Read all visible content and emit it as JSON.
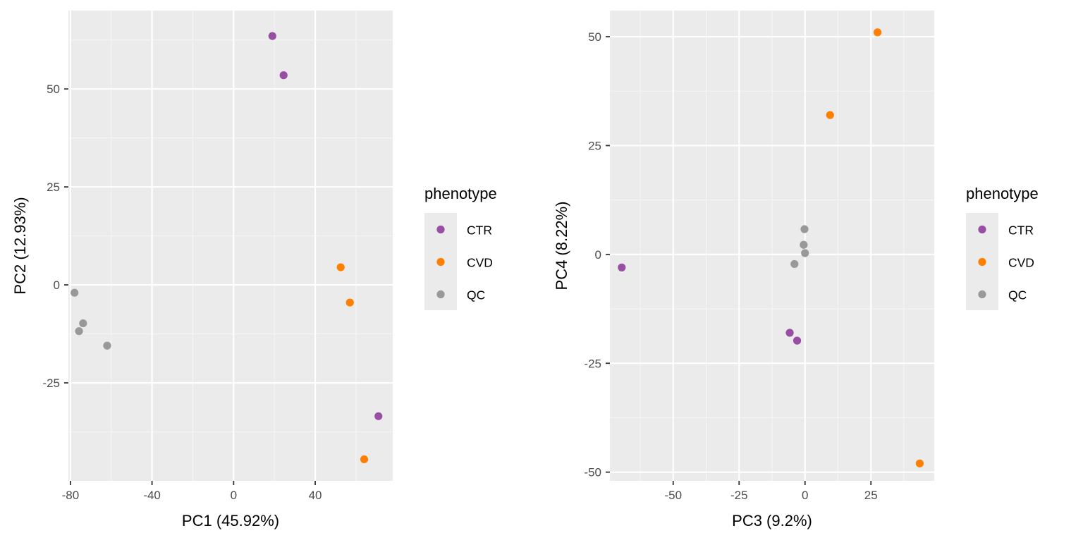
{
  "colors": {
    "panel_background": "#EBEBEB",
    "grid_major": "#FFFFFF",
    "grid_minor": "#F5F5F5",
    "tick_text": "#4D4D4D",
    "tick_mark": "#333333",
    "CTR": "#984EA3",
    "CVD": "#FF7F00",
    "QC": "#999999"
  },
  "chart_data": [
    {
      "type": "scatter",
      "xlabel": "PC1 (45.92%)",
      "ylabel": "PC2 (12.93%)",
      "xlim": [
        -81,
        78
      ],
      "ylim": [
        -50,
        70
      ],
      "xticks": [
        -80,
        -40,
        0,
        40
      ],
      "yticks": [
        -25,
        0,
        25,
        50
      ],
      "xtick_labels": [
        "-80",
        "-40",
        "0",
        "40"
      ],
      "ytick_labels": [
        "-25",
        "0",
        "25",
        "50"
      ],
      "legend": {
        "title": "phenotype",
        "position": "right",
        "entries": [
          "CTR",
          "CVD",
          "QC"
        ]
      },
      "series": [
        {
          "name": "CTR",
          "x": [
            19,
            24.5,
            71
          ],
          "y": [
            63.5,
            53.5,
            -33.5
          ]
        },
        {
          "name": "CVD",
          "x": [
            52.5,
            57,
            64
          ],
          "y": [
            4.5,
            -4.5,
            -44.5
          ]
        },
        {
          "name": "QC",
          "x": [
            -78,
            -75.8,
            -73.8,
            -62
          ],
          "y": [
            -2,
            -11.8,
            -9.8,
            -15.5
          ]
        }
      ]
    },
    {
      "type": "scatter",
      "xlabel": "PC3 (9.2%)",
      "ylabel": "PC4 (8.22%)",
      "xlim": [
        -74,
        49
      ],
      "ylim": [
        -52,
        56
      ],
      "xticks": [
        -50,
        -25,
        0,
        25
      ],
      "yticks": [
        -50,
        -25,
        0,
        25,
        50
      ],
      "xtick_labels": [
        "-50",
        "-25",
        "0",
        "25"
      ],
      "ytick_labels": [
        "-50",
        "-25",
        "0",
        "25",
        "50"
      ],
      "legend": {
        "title": "phenotype",
        "position": "right",
        "entries": [
          "CTR",
          "CVD",
          "QC"
        ]
      },
      "series": [
        {
          "name": "CTR",
          "x": [
            -69.5,
            -5.8,
            -3
          ],
          "y": [
            -3,
            -18,
            -19.8
          ]
        },
        {
          "name": "CVD",
          "x": [
            27.5,
            9.5,
            43.5
          ],
          "y": [
            51,
            32,
            -48
          ]
        },
        {
          "name": "QC",
          "x": [
            -0.2,
            -0.5,
            0,
            -4
          ],
          "y": [
            5.8,
            2.2,
            0.3,
            -2.2
          ]
        }
      ]
    }
  ]
}
